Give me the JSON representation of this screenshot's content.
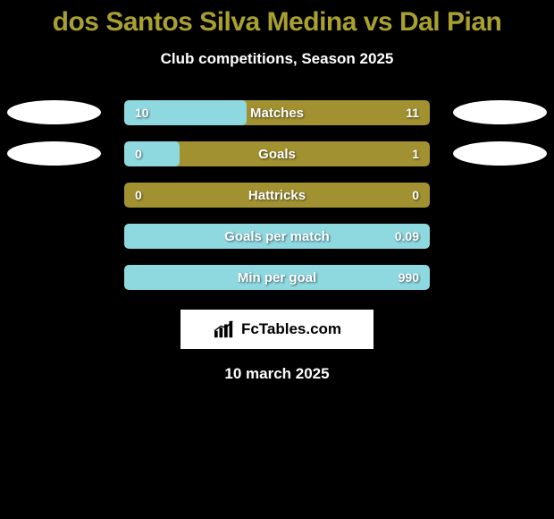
{
  "background_color": "#000000",
  "title": {
    "text": "dos Santos Silva Medina vs Dal Pian",
    "color": "#a8a030",
    "fontsize": 30
  },
  "subtitle": {
    "text": "Club competitions, Season 2025",
    "color": "#ffffff",
    "fontsize": 17
  },
  "colors": {
    "base": "#a19131",
    "fill": "#8ed8e0",
    "ellipse": "#ffffff"
  },
  "rows": [
    {
      "label": "Matches",
      "left": "10",
      "right": "11",
      "show_ellipses": true,
      "fill_pct": 40
    },
    {
      "label": "Goals",
      "left": "0",
      "right": "1",
      "show_ellipses": true,
      "fill_pct": 18
    },
    {
      "label": "Hattricks",
      "left": "0",
      "right": "0",
      "show_ellipses": false,
      "fill_pct": 0
    },
    {
      "label": "Goals per match",
      "left": "",
      "right": "0.09",
      "show_ellipses": false,
      "fill_pct": 100
    },
    {
      "label": "Min per goal",
      "left": "",
      "right": "990",
      "show_ellipses": false,
      "fill_pct": 100
    }
  ],
  "logo": {
    "text": "FcTables.com"
  },
  "date": {
    "text": "10 march 2025"
  }
}
